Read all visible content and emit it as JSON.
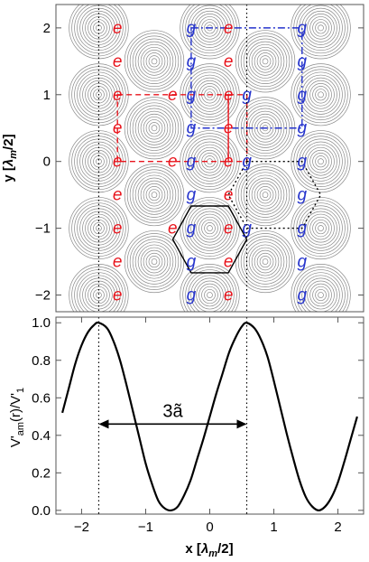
{
  "chart_data": [
    {
      "type": "contour",
      "ylabel": "y [λm/2]",
      "ylabel_parts": {
        "main": "y [",
        "sym": "λ",
        "sub": "m",
        "tail": "/2]"
      },
      "xlim": [
        -2.4,
        2.4
      ],
      "ylim": [
        -2.25,
        2.35
      ],
      "yticks": [
        -2,
        -1,
        0,
        1,
        2
      ],
      "yticklabels": [
        "−2",
        "−1",
        "0",
        "1",
        "2"
      ],
      "contour_centers": [
        [
          -1.732,
          2
        ],
        [
          0,
          2
        ],
        [
          1.732,
          2
        ],
        [
          -0.866,
          1.5
        ],
        [
          0.866,
          1.5
        ],
        [
          -1.732,
          1
        ],
        [
          0,
          1
        ],
        [
          1.732,
          1
        ],
        [
          -0.866,
          0.5
        ],
        [
          0.866,
          0.5
        ],
        [
          -1.732,
          0
        ],
        [
          0,
          0
        ],
        [
          1.732,
          0
        ],
        [
          -0.866,
          -0.5
        ],
        [
          0.866,
          -0.5
        ],
        [
          -1.732,
          -1
        ],
        [
          0,
          -1
        ],
        [
          1.732,
          -1
        ],
        [
          -0.866,
          -1.5
        ],
        [
          0.866,
          -1.5
        ],
        [
          -1.732,
          -2
        ],
        [
          0,
          -2
        ],
        [
          1.732,
          -2
        ]
      ],
      "site_labels": [
        {
          "t": "e",
          "c": "#e8141c",
          "x": -1.44,
          "y": 1.5
        },
        {
          "t": "g",
          "c": "#2533cc",
          "x": -0.29,
          "y": 1.5
        },
        {
          "t": "e",
          "c": "#e8141c",
          "x": 0.29,
          "y": 1.5
        },
        {
          "t": "g",
          "c": "#2533cc",
          "x": 1.44,
          "y": 1.5
        },
        {
          "t": "e",
          "c": "#e8141c",
          "x": -0.58,
          "y": 1.0
        },
        {
          "t": "g",
          "c": "#2533cc",
          "x": 0.58,
          "y": 1.0
        },
        {
          "t": "e",
          "c": "#e8141c",
          "x": -1.44,
          "y": 0.5
        },
        {
          "t": "g",
          "c": "#2533cc",
          "x": -0.29,
          "y": 0.5
        },
        {
          "t": "e",
          "c": "#e8141c",
          "x": 0.29,
          "y": 0.5
        },
        {
          "t": "g",
          "c": "#2533cc",
          "x": 1.44,
          "y": 0.5
        },
        {
          "t": "e",
          "c": "#e8141c",
          "x": -0.58,
          "y": 0.0
        },
        {
          "t": "g",
          "c": "#2533cc",
          "x": 0.58,
          "y": 0.0
        },
        {
          "t": "e",
          "c": "#e8141c",
          "x": -1.44,
          "y": -0.5
        },
        {
          "t": "g",
          "c": "#2533cc",
          "x": -0.29,
          "y": -0.5
        },
        {
          "t": "e",
          "c": "#e8141c",
          "x": 0.29,
          "y": -0.5
        },
        {
          "t": "g",
          "c": "#2533cc",
          "x": 1.44,
          "y": -0.5
        },
        {
          "t": "e",
          "c": "#e8141c",
          "x": -0.58,
          "y": -1.0
        },
        {
          "t": "g",
          "c": "#2533cc",
          "x": 0.58,
          "y": -1.0
        },
        {
          "t": "e",
          "c": "#e8141c",
          "x": -1.44,
          "y": -1.5
        },
        {
          "t": "g",
          "c": "#2533cc",
          "x": -0.29,
          "y": -1.5
        },
        {
          "t": "e",
          "c": "#e8141c",
          "x": 0.29,
          "y": -1.5
        },
        {
          "t": "g",
          "c": "#2533cc",
          "x": 1.44,
          "y": -1.5
        },
        {
          "t": "e",
          "c": "#e8141c",
          "x": -1.44,
          "y": 2.0
        },
        {
          "t": "g",
          "c": "#2533cc",
          "x": -0.29,
          "y": 2.0
        },
        {
          "t": "e",
          "c": "#e8141c",
          "x": 0.29,
          "y": 2.0
        },
        {
          "t": "g",
          "c": "#2533cc",
          "x": 1.44,
          "y": 2.0
        },
        {
          "t": "e",
          "c": "#e8141c",
          "x": -1.44,
          "y": 1.0
        },
        {
          "t": "g",
          "c": "#2533cc",
          "x": -0.29,
          "y": 1.0
        },
        {
          "t": "e",
          "c": "#e8141c",
          "x": 0.29,
          "y": 1.0
        },
        {
          "t": "g",
          "c": "#2533cc",
          "x": 1.44,
          "y": 1.0
        },
        {
          "t": "e",
          "c": "#e8141c",
          "x": -1.44,
          "y": 0.0
        },
        {
          "t": "g",
          "c": "#2533cc",
          "x": -0.29,
          "y": 0.0
        },
        {
          "t": "e",
          "c": "#e8141c",
          "x": 0.29,
          "y": 0.0
        },
        {
          "t": "g",
          "c": "#2533cc",
          "x": 1.44,
          "y": 0.0
        },
        {
          "t": "e",
          "c": "#e8141c",
          "x": -1.44,
          "y": -1.0
        },
        {
          "t": "g",
          "c": "#2533cc",
          "x": -0.29,
          "y": -1.0
        },
        {
          "t": "e",
          "c": "#e8141c",
          "x": 0.29,
          "y": -1.0
        },
        {
          "t": "g",
          "c": "#2533cc",
          "x": 1.44,
          "y": -1.0
        },
        {
          "t": "e",
          "c": "#e8141c",
          "x": -1.44,
          "y": -2.0
        },
        {
          "t": "g",
          "c": "#2533cc",
          "x": -0.29,
          "y": -2.0
        },
        {
          "t": "e",
          "c": "#e8141c",
          "x": 0.29,
          "y": -2.0
        },
        {
          "t": "g",
          "c": "#2533cc",
          "x": 1.44,
          "y": -2.0
        }
      ],
      "unit_cells": [
        {
          "name": "red-cell",
          "color": "#e8141c",
          "dash": "6,4",
          "points": [
            [
              -1.44,
              1.0
            ],
            [
              0.29,
              1.0
            ],
            [
              0.29,
              0.0
            ],
            [
              -1.44,
              0.0
            ]
          ]
        },
        {
          "name": "blue-cell",
          "color": "#2533cc",
          "dash": "8,3,2,3",
          "points": [
            [
              -0.29,
              2.0
            ],
            [
              1.44,
              2.0
            ],
            [
              1.44,
              0.5
            ],
            [
              -0.29,
              0.5
            ]
          ]
        },
        {
          "name": "red-cell-right",
          "color": "#e8141c",
          "dash": "6,4",
          "points": [
            [
              0.29,
              1.0
            ],
            [
              0.58,
              1.0
            ],
            [
              0.58,
              0.0
            ],
            [
              0.29,
              0.0
            ]
          ]
        }
      ],
      "hexagons": [
        {
          "name": "solid-hexagon",
          "dash": "",
          "points": [
            [
              -0.29,
              -0.667
            ],
            [
              0.29,
              -0.667
            ],
            [
              0.577,
              -1.167
            ],
            [
              0.29,
              -1.667
            ],
            [
              -0.29,
              -1.667
            ],
            [
              -0.577,
              -1.167
            ]
          ]
        },
        {
          "name": "dotted-hexagon",
          "dash": "2,3",
          "points": [
            [
              0.58,
              0.0
            ],
            [
              1.44,
              0.0
            ],
            [
              1.732,
              -0.5
            ],
            [
              1.44,
              -1.0
            ],
            [
              0.58,
              -1.0
            ],
            [
              0.29,
              -0.5
            ]
          ]
        }
      ],
      "vlines": [
        -1.732,
        0.577
      ]
    },
    {
      "type": "line",
      "xlabel": "x [λm/2]",
      "xlabel_parts": {
        "main": "x [",
        "sym": "λ",
        "sub": "m",
        "tail": "/2]"
      },
      "ylabel": "V'am(r)/V'1",
      "ylabel_parts": {
        "a": "V'",
        "asub": "am",
        "b": "(r)/V'",
        "bsub": "1"
      },
      "xlim": [
        -2.4,
        2.4
      ],
      "ylim": [
        -0.02,
        1.03
      ],
      "xticks": [
        -2,
        -1,
        0,
        1,
        2
      ],
      "xticklabels": [
        "−2",
        "−1",
        "0",
        "1",
        "2"
      ],
      "yticks": [
        0.0,
        0.2,
        0.4,
        0.6,
        0.8,
        1.0
      ],
      "yticklabels": [
        "0.0",
        "0.2",
        "0.4",
        "0.6",
        "0.8",
        "1.0"
      ],
      "series": [
        {
          "x": [
            -2.3,
            -2.2,
            -2.1,
            -2.0,
            -1.9,
            -1.8,
            -1.732,
            -1.6,
            -1.5,
            -1.4,
            -1.3,
            -1.2,
            -1.1,
            -1.0,
            -0.9,
            -0.8,
            -0.7,
            -0.6,
            -0.5,
            -0.4,
            -0.3,
            -0.2,
            -0.1,
            0.0,
            0.1,
            0.2,
            0.3,
            0.4,
            0.5,
            0.577,
            0.7,
            0.8,
            0.9,
            1.0,
            1.1,
            1.2,
            1.3,
            1.4,
            1.5,
            1.6,
            1.7,
            1.8,
            1.9,
            2.0,
            2.1,
            2.2,
            2.3
          ],
          "y": [
            0.52,
            0.65,
            0.78,
            0.88,
            0.95,
            0.99,
            1.0,
            0.97,
            0.9,
            0.8,
            0.67,
            0.53,
            0.39,
            0.25,
            0.14,
            0.05,
            0.01,
            0.0,
            0.02,
            0.08,
            0.16,
            0.27,
            0.38,
            0.5,
            0.62,
            0.73,
            0.84,
            0.92,
            0.98,
            1.0,
            0.97,
            0.91,
            0.82,
            0.69,
            0.55,
            0.41,
            0.28,
            0.16,
            0.07,
            0.02,
            0.0,
            0.02,
            0.07,
            0.15,
            0.26,
            0.38,
            0.5
          ]
        }
      ],
      "vlines": [
        -1.732,
        0.577
      ],
      "annotation": {
        "text": "3ã",
        "x1": -1.732,
        "x2": 0.577,
        "y": 0.46
      }
    }
  ]
}
